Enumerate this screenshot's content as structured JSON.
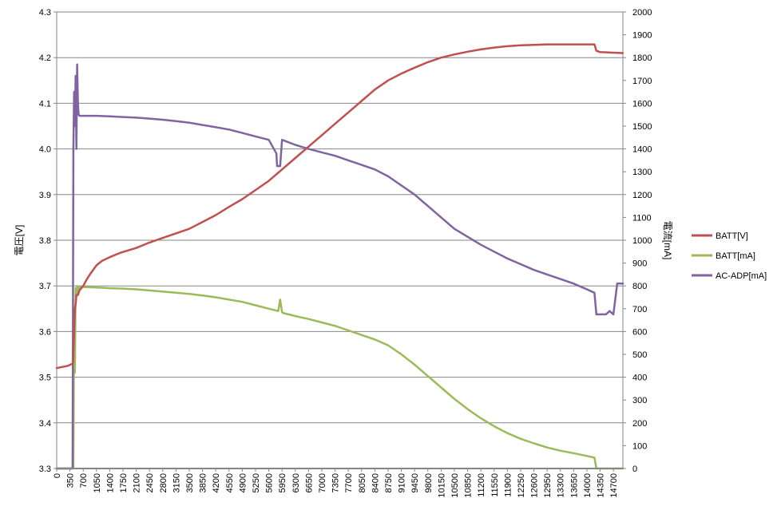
{
  "chart_data": {
    "type": "line",
    "title": "",
    "xlabel": "",
    "ylabel": "電圧[V]",
    "y2label": "電流[mA]",
    "grid": true,
    "legend_position": "right",
    "xlim": [
      0,
      14950
    ],
    "ylim": [
      3.3,
      4.3
    ],
    "y2lim": [
      0,
      2000
    ],
    "x_ticks": [
      "0",
      "350",
      "700",
      "1050",
      "1400",
      "1750",
      "2100",
      "2450",
      "2800",
      "3150",
      "3500",
      "3850",
      "4200",
      "4550",
      "4900",
      "5250",
      "5600",
      "5950",
      "6300",
      "6650",
      "7000",
      "7350",
      "7700",
      "8050",
      "8400",
      "8750",
      "9100",
      "9450",
      "9800",
      "10150",
      "10500",
      "10850",
      "11200",
      "11550",
      "11900",
      "12250",
      "12600",
      "12950",
      "13300",
      "13650",
      "14000",
      "14350",
      "14700"
    ],
    "y_ticks": [
      "3.3",
      "3.4",
      "3.5",
      "3.6",
      "3.7",
      "3.8",
      "3.9",
      "4.0",
      "4.1",
      "4.2",
      "4.3"
    ],
    "y2_ticks": [
      "0",
      "100",
      "200",
      "300",
      "400",
      "500",
      "600",
      "700",
      "800",
      "900",
      "1000",
      "1100",
      "1200",
      "1300",
      "1400",
      "1500",
      "1600",
      "1700",
      "1800",
      "1900",
      "2000"
    ],
    "series": [
      {
        "name": "BATT[V]",
        "axis": "left",
        "color": "#c0504d",
        "x": [
          0,
          300,
          430,
          480,
          500,
          520,
          560,
          600,
          700,
          800,
          900,
          1050,
          1200,
          1400,
          1700,
          2100,
          2450,
          2800,
          3150,
          3500,
          3850,
          4200,
          4550,
          4900,
          5250,
          5600,
          5950,
          6300,
          6650,
          7000,
          7350,
          7700,
          8050,
          8400,
          8750,
          9100,
          9450,
          9800,
          10150,
          10500,
          10850,
          11200,
          11550,
          11900,
          12250,
          12600,
          12950,
          13300,
          13650,
          14000,
          14200,
          14250,
          14350,
          14950
        ],
        "values": [
          3.52,
          3.525,
          3.53,
          3.65,
          3.66,
          3.68,
          3.68,
          3.69,
          3.7,
          3.715,
          3.728,
          3.745,
          3.755,
          3.763,
          3.773,
          3.783,
          3.795,
          3.805,
          3.815,
          3.825,
          3.84,
          3.855,
          3.873,
          3.89,
          3.91,
          3.93,
          3.955,
          3.98,
          4.005,
          4.03,
          4.055,
          4.08,
          4.105,
          4.13,
          4.15,
          4.165,
          4.178,
          4.19,
          4.2,
          4.207,
          4.213,
          4.218,
          4.222,
          4.225,
          4.227,
          4.228,
          4.229,
          4.229,
          4.229,
          4.229,
          4.229,
          4.215,
          4.212,
          4.21
        ]
      },
      {
        "name": "BATT[mA]",
        "axis": "right",
        "color": "#9bbb59",
        "x": [
          0,
          440,
          460,
          480,
          500,
          520,
          540,
          560,
          580,
          600,
          700,
          1050,
          1400,
          1750,
          2100,
          2450,
          2800,
          3150,
          3500,
          3850,
          4200,
          4550,
          4900,
          5250,
          5600,
          5850,
          5900,
          5950,
          6000,
          6300,
          6650,
          7000,
          7350,
          7700,
          8050,
          8400,
          8750,
          9100,
          9450,
          9800,
          10150,
          10500,
          10850,
          11200,
          11550,
          11900,
          12250,
          12600,
          12950,
          13300,
          13650,
          14000,
          14200,
          14250,
          14950
        ],
        "values": [
          0,
          0,
          700,
          420,
          790,
          760,
          800,
          770,
          790,
          795,
          795,
          793,
          790,
          788,
          785,
          780,
          775,
          770,
          765,
          758,
          750,
          740,
          730,
          715,
          700,
          690,
          740,
          685,
          680,
          668,
          655,
          640,
          625,
          605,
          585,
          565,
          540,
          500,
          455,
          405,
          355,
          305,
          260,
          220,
          185,
          155,
          130,
          110,
          92,
          78,
          67,
          55,
          48,
          0,
          0
        ]
      },
      {
        "name": "AC-ADP[mA]",
        "axis": "right",
        "color": "#8064a2",
        "x": [
          0,
          420,
          440,
          460,
          480,
          500,
          520,
          540,
          560,
          580,
          600,
          700,
          1050,
          1400,
          1750,
          2100,
          2450,
          2800,
          3150,
          3500,
          3850,
          4200,
          4550,
          4900,
          5250,
          5600,
          5800,
          5820,
          5900,
          5950,
          6300,
          6650,
          7000,
          7350,
          7700,
          8050,
          8400,
          8750,
          9100,
          9450,
          9800,
          10150,
          10500,
          10850,
          11200,
          11550,
          11900,
          12250,
          12600,
          12950,
          13300,
          13650,
          14000,
          14200,
          14250,
          14500,
          14600,
          14700,
          14800,
          14950
        ],
        "values": [
          0,
          0,
          1400,
          1650,
          1500,
          1720,
          1400,
          1770,
          1600,
          1550,
          1545,
          1545,
          1545,
          1543,
          1540,
          1537,
          1533,
          1528,
          1522,
          1515,
          1505,
          1495,
          1485,
          1470,
          1455,
          1440,
          1380,
          1325,
          1325,
          1440,
          1418,
          1400,
          1385,
          1370,
          1350,
          1330,
          1310,
          1280,
          1240,
          1200,
          1150,
          1100,
          1050,
          1015,
          980,
          950,
          920,
          895,
          870,
          850,
          830,
          810,
          785,
          770,
          675,
          675,
          690,
          675,
          810,
          810
        ]
      }
    ]
  }
}
